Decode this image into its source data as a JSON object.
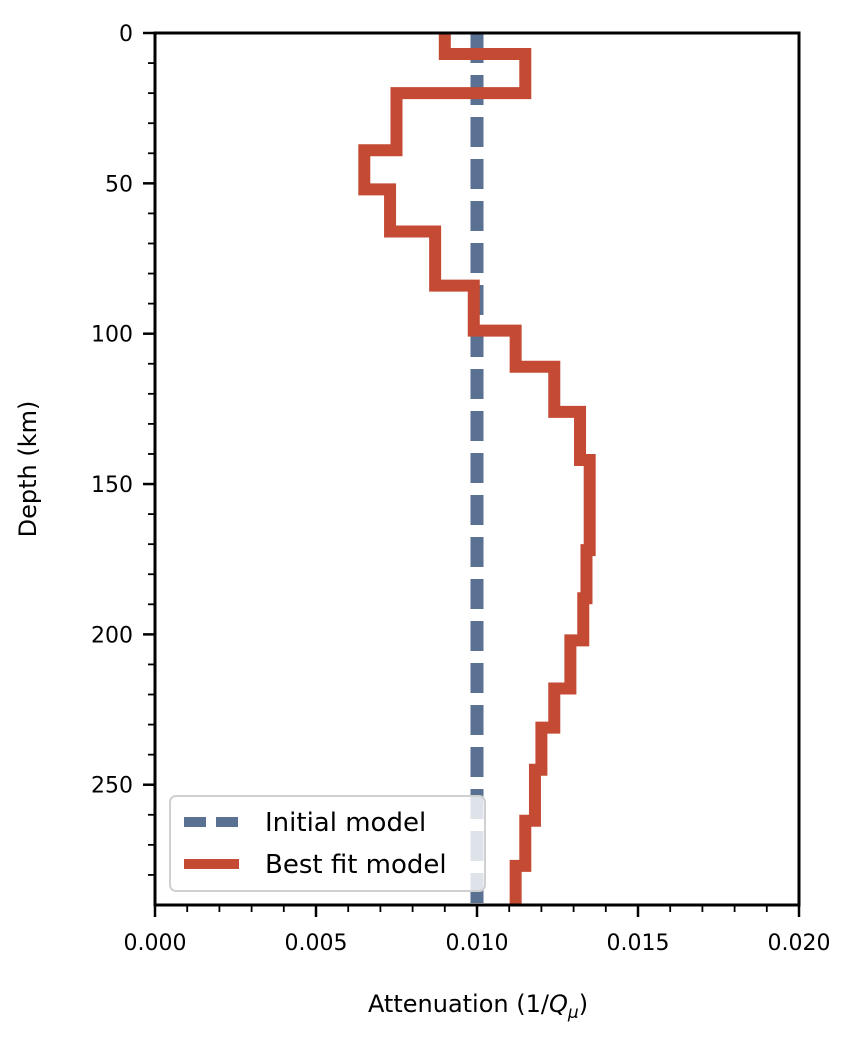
{
  "chart_data": {
    "type": "line",
    "xlabel_prefix": "Attenuation (1/",
    "xlabel_q": "Q",
    "xlabel_sub": "μ",
    "xlabel_suffix": ")",
    "ylabel": "Depth (km)",
    "xlim": [
      0.0,
      0.02
    ],
    "ylim": [
      290,
      0
    ],
    "y_inverted": true,
    "x_ticks": [
      "0.000",
      "0.005",
      "0.010",
      "0.015",
      "0.020"
    ],
    "x_tick_values": [
      0.0,
      0.005,
      0.01,
      0.015,
      0.02
    ],
    "y_ticks": [
      "0",
      "50",
      "100",
      "150",
      "200",
      "250"
    ],
    "y_tick_values": [
      0,
      50,
      100,
      150,
      200,
      250
    ],
    "grid": false,
    "legend_position": "lower-left",
    "series": [
      {
        "name": "Initial model",
        "style": "dashed",
        "color": "#5a7193",
        "x": [
          0.01,
          0.01
        ],
        "y": [
          0,
          290
        ]
      },
      {
        "name": "Best fit model",
        "style": "solid-step",
        "color": "#c44a34",
        "layers": [
          {
            "top": 0,
            "bottom": 7,
            "value": 0.009
          },
          {
            "top": 7,
            "bottom": 20,
            "value": 0.0115
          },
          {
            "top": 20,
            "bottom": 39,
            "value": 0.0075
          },
          {
            "top": 39,
            "bottom": 52,
            "value": 0.0065
          },
          {
            "top": 52,
            "bottom": 66,
            "value": 0.0073
          },
          {
            "top": 66,
            "bottom": 84,
            "value": 0.0087
          },
          {
            "top": 84,
            "bottom": 99,
            "value": 0.0099
          },
          {
            "top": 99,
            "bottom": 111,
            "value": 0.0112
          },
          {
            "top": 111,
            "bottom": 126,
            "value": 0.0124
          },
          {
            "top": 126,
            "bottom": 142,
            "value": 0.0132
          },
          {
            "top": 142,
            "bottom": 172,
            "value": 0.0135
          },
          {
            "top": 172,
            "bottom": 188,
            "value": 0.0134
          },
          {
            "top": 188,
            "bottom": 202,
            "value": 0.0133
          },
          {
            "top": 202,
            "bottom": 218,
            "value": 0.0129
          },
          {
            "top": 218,
            "bottom": 231,
            "value": 0.0124
          },
          {
            "top": 231,
            "bottom": 245,
            "value": 0.012
          },
          {
            "top": 245,
            "bottom": 262,
            "value": 0.0118
          },
          {
            "top": 262,
            "bottom": 277,
            "value": 0.0115
          },
          {
            "top": 277,
            "bottom": 290,
            "value": 0.0112
          }
        ]
      }
    ]
  }
}
